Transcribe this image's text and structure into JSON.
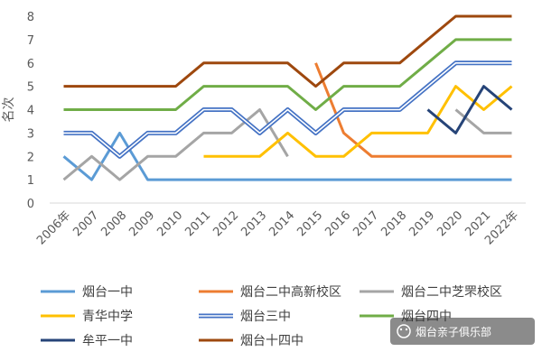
{
  "chart_data": {
    "type": "line",
    "ylabel": "名次",
    "ylim": [
      0,
      8
    ],
    "yticks": [
      0,
      1,
      2,
      3,
      4,
      5,
      6,
      7,
      8
    ],
    "grid": false,
    "legend": "bottom",
    "categories": [
      "2006年",
      "2007",
      "2008",
      "2009",
      "2010",
      "2011",
      "2012",
      "2013",
      "2014",
      "2015",
      "2016",
      "2017",
      "2018",
      "2019",
      "2020",
      "2021",
      "2022年"
    ],
    "series": [
      {
        "name": "烟台一中",
        "color": "#5b9bd5",
        "style": "solid",
        "values": [
          2,
          1,
          3,
          1,
          1,
          1,
          1,
          1,
          1,
          1,
          1,
          1,
          1,
          1,
          1,
          1,
          1
        ]
      },
      {
        "name": "烟台二中高新校区",
        "color": "#ed7d31",
        "style": "solid",
        "values": [
          null,
          null,
          null,
          null,
          null,
          null,
          null,
          null,
          null,
          6,
          3,
          2,
          2,
          2,
          2,
          2,
          2
        ]
      },
      {
        "name": "烟台二中芝罘校区",
        "color": "#a5a5a5",
        "style": "solid",
        "values": [
          1,
          2,
          1,
          2,
          2,
          3,
          3,
          4,
          2,
          null,
          null,
          null,
          null,
          null,
          4,
          3,
          3
        ]
      },
      {
        "name": "青华中学",
        "color": "#ffc000",
        "style": "solid",
        "values": [
          null,
          null,
          null,
          null,
          null,
          2,
          2,
          2,
          3,
          2,
          2,
          3,
          3,
          3,
          5,
          4,
          5
        ]
      },
      {
        "name": "烟台三中",
        "color": "#4472c4",
        "style": "double",
        "values": [
          3,
          3,
          2,
          3,
          3,
          4,
          4,
          3,
          4,
          3,
          4,
          4,
          4,
          5,
          6,
          6,
          6
        ]
      },
      {
        "name": "烟台四中",
        "color": "#70ad47",
        "style": "solid",
        "values": [
          4,
          4,
          4,
          4,
          4,
          5,
          5,
          5,
          5,
          4,
          5,
          5,
          5,
          6,
          7,
          7,
          7
        ]
      },
      {
        "name": "牟平一中",
        "color": "#264478",
        "style": "solid",
        "values": [
          null,
          null,
          null,
          null,
          null,
          null,
          null,
          null,
          null,
          null,
          null,
          null,
          null,
          4,
          3,
          5,
          4
        ]
      },
      {
        "name": "烟台十四中",
        "color": "#9e480e",
        "style": "solid",
        "values": [
          5,
          5,
          5,
          5,
          5,
          6,
          6,
          6,
          6,
          5,
          6,
          6,
          6,
          7,
          8,
          8,
          8
        ]
      }
    ]
  },
  "watermark": {
    "text": "烟台亲子俱乐部",
    "icon": "wechat-icon"
  }
}
